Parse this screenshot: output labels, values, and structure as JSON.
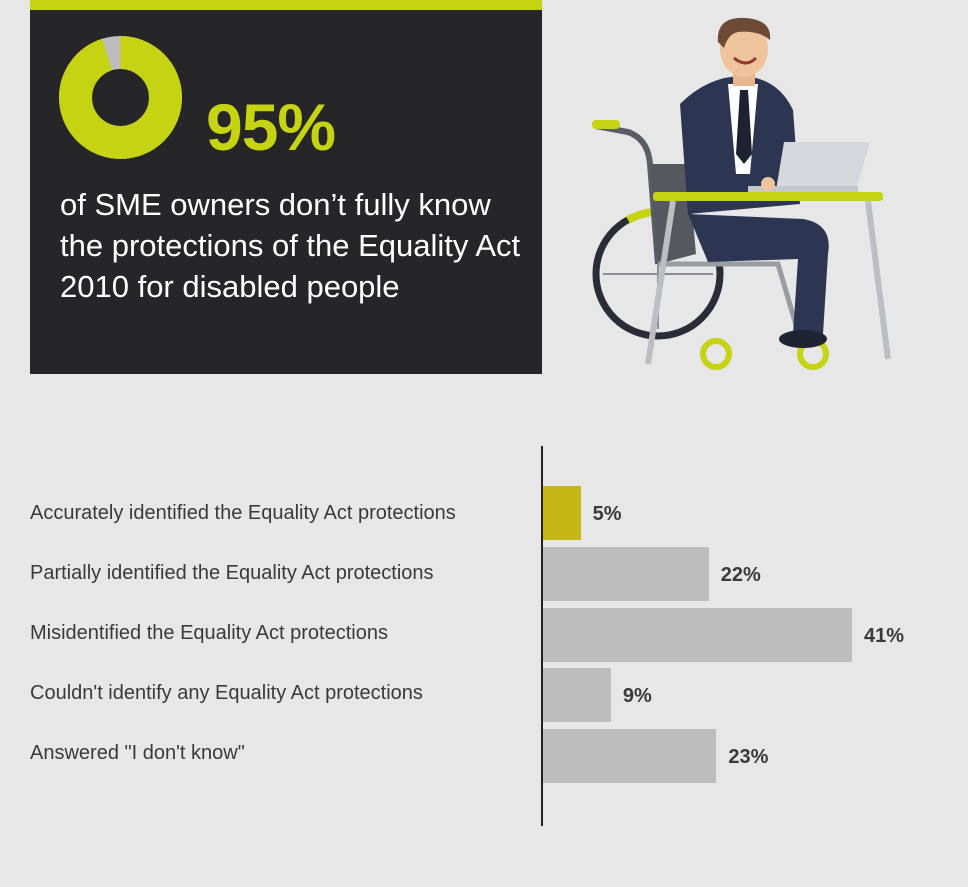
{
  "hero": {
    "stat": "95%",
    "caption": "of SME owners don’t fully know the protections of the Equality Act 2010 for disabled people",
    "donut_value": 0.95,
    "accent_color": "#c5d313",
    "background_color": "#262628",
    "remainder_color": "#bdbdbd"
  },
  "illustration": {
    "icon": "person-in-wheelchair-with-laptop-illustration"
  },
  "chart_data": {
    "type": "bar",
    "orientation": "horizontal",
    "categories": [
      "Accurately identified the Equality Act protections",
      "Partially identified the Equality Act protections",
      "Misidentified the Equality Act protections",
      "Couldn't identify any Equality Act protections",
      "Answered \"I don't know\""
    ],
    "values": [
      5,
      22,
      41,
      9,
      23
    ],
    "value_labels": [
      "5%",
      "22%",
      "41%",
      "9%",
      "23%"
    ],
    "bar_colors": [
      "#c5b814",
      "#bdbdbd",
      "#bdbdbd",
      "#bdbdbd",
      "#bdbdbd"
    ],
    "xlim": [
      0,
      41
    ],
    "title": "",
    "xlabel": "",
    "ylabel": ""
  }
}
